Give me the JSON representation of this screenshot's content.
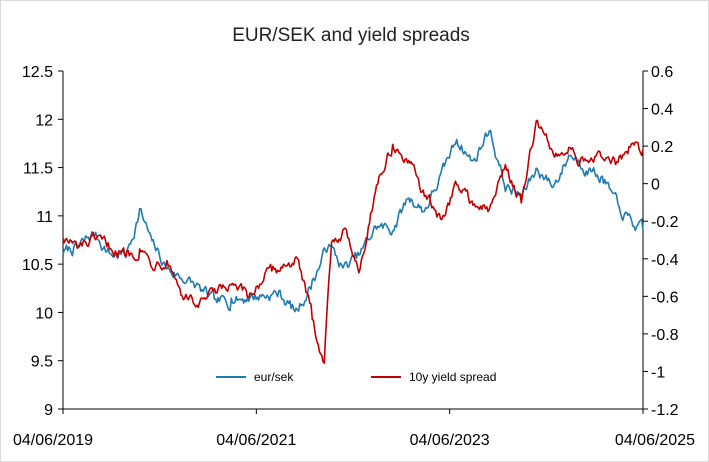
{
  "chart_data": {
    "type": "line",
    "title": "EUR/SEK and yield spreads",
    "xlabel": "",
    "ylabel_left": "",
    "ylabel_right": "",
    "x_tick_labels": [
      "04/06/2019",
      "04/06/2021",
      "04/06/2023",
      "04/06/2025"
    ],
    "x_range": [
      "2019-06-04",
      "2025-06-04"
    ],
    "y_left": {
      "min": 9,
      "max": 12.5,
      "ticks": [
        "9",
        "9.5",
        "10",
        "10.5",
        "11",
        "11.5",
        "12",
        "12.5"
      ]
    },
    "y_right": {
      "min": -1.2,
      "max": 0.6,
      "ticks": [
        "-1.2",
        "-1",
        "-0.8",
        "-0.6",
        "-0.4",
        "-0.2",
        "0",
        "0.2",
        "0.4",
        "0.6"
      ]
    },
    "grid": false,
    "legend_position": "bottom-center",
    "series": [
      {
        "name": "eur/sek",
        "axis": "left",
        "color": "#1f7bb0",
        "points": [
          [
            "2019-06-04",
            10.62
          ],
          [
            "2019-08-01",
            10.68
          ],
          [
            "2019-10-01",
            10.82
          ],
          [
            "2019-12-01",
            10.6
          ],
          [
            "2020-02-01",
            10.6
          ],
          [
            "2020-03-20",
            11.05
          ],
          [
            "2020-05-01",
            10.75
          ],
          [
            "2020-07-01",
            10.45
          ],
          [
            "2020-09-01",
            10.35
          ],
          [
            "2020-11-01",
            10.25
          ],
          [
            "2021-01-01",
            10.1
          ],
          [
            "2021-03-01",
            10.12
          ],
          [
            "2021-05-01",
            10.15
          ],
          [
            "2021-07-01",
            10.18
          ],
          [
            "2021-09-01",
            10.2
          ],
          [
            "2021-11-01",
            10.0
          ],
          [
            "2022-01-01",
            10.3
          ],
          [
            "2022-03-01",
            10.7
          ],
          [
            "2022-05-01",
            10.45
          ],
          [
            "2022-07-01",
            10.6
          ],
          [
            "2022-09-01",
            10.9
          ],
          [
            "2022-11-01",
            10.85
          ],
          [
            "2023-01-01",
            11.2
          ],
          [
            "2023-03-01",
            11.05
          ],
          [
            "2023-05-01",
            11.4
          ],
          [
            "2023-07-01",
            11.8
          ],
          [
            "2023-09-01",
            11.55
          ],
          [
            "2023-11-01",
            11.9
          ],
          [
            "2024-01-01",
            11.3
          ],
          [
            "2024-03-01",
            11.2
          ],
          [
            "2024-05-01",
            11.5
          ],
          [
            "2024-07-01",
            11.3
          ],
          [
            "2024-09-01",
            11.65
          ],
          [
            "2024-11-01",
            11.5
          ],
          [
            "2025-01-01",
            11.4
          ],
          [
            "2025-03-01",
            11.1
          ],
          [
            "2025-05-01",
            10.9
          ],
          [
            "2025-06-04",
            10.85
          ]
        ]
      },
      {
        "name": "10y yield spread",
        "axis": "right",
        "color": "#c00000",
        "points": [
          [
            "2019-06-04",
            -0.28
          ],
          [
            "2019-08-01",
            -0.35
          ],
          [
            "2019-10-01",
            -0.3
          ],
          [
            "2019-12-01",
            -0.34
          ],
          [
            "2020-02-01",
            -0.38
          ],
          [
            "2020-03-20",
            -0.35
          ],
          [
            "2020-05-01",
            -0.42
          ],
          [
            "2020-07-01",
            -0.4
          ],
          [
            "2020-09-01",
            -0.6
          ],
          [
            "2020-11-01",
            -0.65
          ],
          [
            "2021-01-01",
            -0.58
          ],
          [
            "2021-03-01",
            -0.55
          ],
          [
            "2021-05-01",
            -0.6
          ],
          [
            "2021-07-01",
            -0.5
          ],
          [
            "2021-09-01",
            -0.45
          ],
          [
            "2021-11-01",
            -0.4
          ],
          [
            "2022-01-01",
            -0.7
          ],
          [
            "2022-02-15",
            -0.95
          ],
          [
            "2022-03-15",
            -0.3
          ],
          [
            "2022-05-01",
            -0.25
          ],
          [
            "2022-07-01",
            -0.45
          ],
          [
            "2022-09-01",
            0.0
          ],
          [
            "2022-11-01",
            0.2
          ],
          [
            "2023-01-01",
            0.1
          ],
          [
            "2023-03-01",
            -0.05
          ],
          [
            "2023-05-01",
            -0.2
          ],
          [
            "2023-07-01",
            0.0
          ],
          [
            "2023-09-01",
            -0.1
          ],
          [
            "2023-11-01",
            -0.15
          ],
          [
            "2024-01-01",
            0.1
          ],
          [
            "2024-03-01",
            -0.1
          ],
          [
            "2024-05-01",
            0.35
          ],
          [
            "2024-07-01",
            0.15
          ],
          [
            "2024-09-01",
            0.2
          ],
          [
            "2024-11-01",
            0.1
          ],
          [
            "2025-01-01",
            0.15
          ],
          [
            "2025-03-01",
            0.1
          ],
          [
            "2025-05-01",
            0.22
          ],
          [
            "2025-06-04",
            0.18
          ]
        ]
      }
    ]
  }
}
